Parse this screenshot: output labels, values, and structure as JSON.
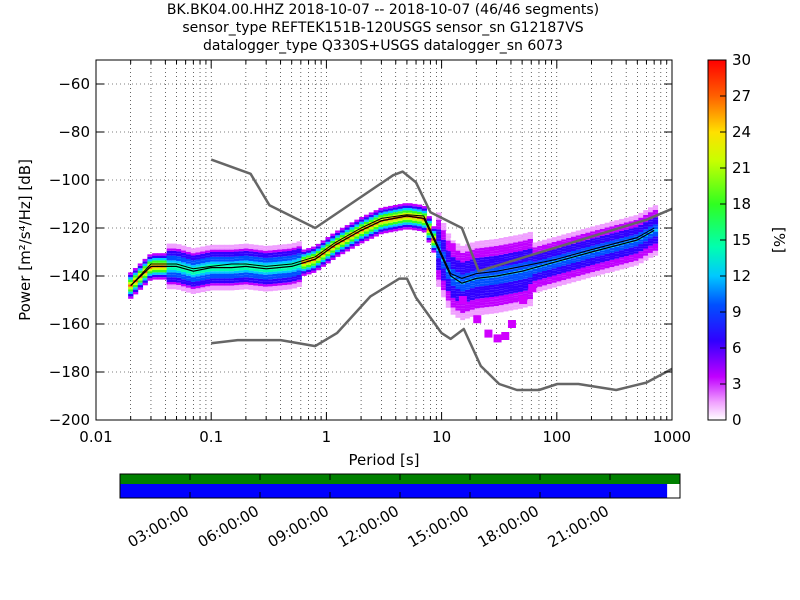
{
  "chart_data": {
    "type": "heatmap",
    "title_lines": [
      "BK.BK04.00.HHZ   2018-10-07 -- 2018-10-07  (46/46 segments)",
      "sensor_type REFTEK151B-120USGS sensor_sn G12187VS",
      "datalogger_type Q330S+USGS datalogger_sn 6073"
    ],
    "xlabel": "Period [s]",
    "ylabel": "Power [m²/s⁴/Hz] [dB]",
    "xscale": "log",
    "xlim": [
      0.01,
      1000
    ],
    "ylim": [
      -200,
      -50
    ],
    "x_ticks": [
      0.01,
      0.1,
      1,
      10,
      100,
      1000
    ],
    "x_tick_labels": [
      "0.01",
      "0.1",
      "1",
      "10",
      "100",
      "1000"
    ],
    "y_ticks": [
      -200,
      -180,
      -160,
      -140,
      -120,
      -100,
      -80,
      -60
    ],
    "y_tick_labels": [
      "−200",
      "−180",
      "−160",
      "−140",
      "−120",
      "−100",
      "−80",
      "−60"
    ],
    "colorbar": {
      "label": "[%]",
      "range": [
        0,
        30
      ],
      "ticks": [
        0,
        3,
        6,
        9,
        12,
        15,
        18,
        21,
        24,
        27,
        30
      ]
    },
    "nhnm": {
      "name": "NHNM",
      "x": [
        0.1,
        0.22,
        0.32,
        0.8,
        3.8,
        4.6,
        6,
        8,
        15,
        21,
        600,
        1000
      ],
      "y": [
        -91.5,
        -97.4,
        -110.5,
        -120,
        -98,
        -96.5,
        -101,
        -113.4,
        -120,
        -138,
        -116.6,
        -112
      ]
    },
    "nlnm": {
      "name": "NLNM",
      "x": [
        0.1,
        0.17,
        0.4,
        0.8,
        1.24,
        2.4,
        4.3,
        5,
        6,
        10,
        12,
        15.6,
        21.9,
        31.6,
        45,
        70,
        101,
        154,
        328,
        600,
        1000
      ],
      "y": [
        -168,
        -166.7,
        -166.7,
        -169.2,
        -163.7,
        -148.6,
        -141.1,
        -141.1,
        -149,
        -163.8,
        -166.2,
        -162.1,
        -177.5,
        -185,
        -187.5,
        -187.5,
        -185,
        -185,
        -187.5,
        -184.4,
        -178.7
      ]
    },
    "mean": {
      "name": "mean",
      "x": [
        0.02,
        0.03,
        0.05,
        0.07,
        0.1,
        0.15,
        0.2,
        0.3,
        0.5,
        0.8,
        1.2,
        2,
        3,
        5,
        7,
        9,
        12,
        15,
        20,
        30,
        50,
        100,
        200,
        500,
        700
      ],
      "y": [
        -144,
        -136,
        -136,
        -138,
        -136.5,
        -136.5,
        -136,
        -137,
        -136,
        -133,
        -127,
        -121,
        -117,
        -115,
        -116,
        -127,
        -140,
        -143,
        -141,
        -140,
        -138,
        -134,
        -130,
        -125,
        -121
      ]
    },
    "mode": {
      "name": "mode",
      "x": [
        0.02,
        0.03,
        0.05,
        0.07,
        0.1,
        0.15,
        0.2,
        0.3,
        0.5,
        0.8,
        1.2,
        2,
        3,
        5,
        7,
        9,
        12,
        15,
        20,
        30,
        50,
        100,
        200,
        500,
        700
      ],
      "y": [
        -144,
        -135,
        -135,
        -137,
        -136,
        -135,
        -135,
        -136,
        -135,
        -132,
        -126,
        -120,
        -116,
        -114.5,
        -115,
        -126,
        -139,
        -141,
        -139,
        -138,
        -136,
        -133,
        -129,
        -124,
        -120
      ]
    },
    "timeline": {
      "tick_labels": [
        "03:00:00",
        "06:00:00",
        "09:00:00",
        "12:00:00",
        "15:00:00",
        "18:00:00",
        "21:00:00"
      ],
      "data_coverage_fraction": 1.0,
      "psd_coverage_fraction": 0.977,
      "colors": {
        "data": "#008000",
        "psd": "#0000ff"
      }
    }
  }
}
